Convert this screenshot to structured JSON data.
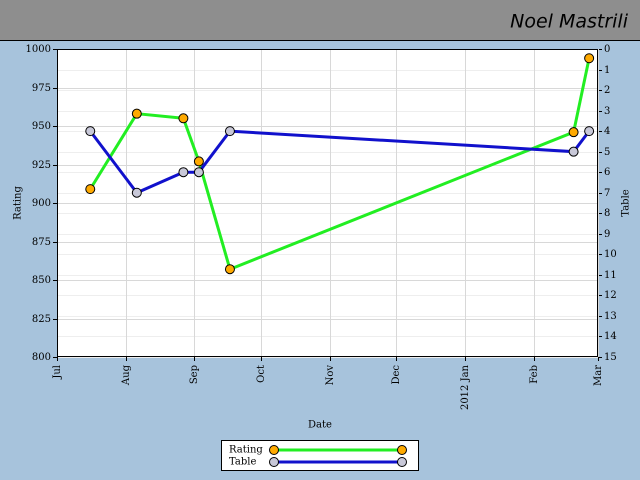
{
  "header": {
    "name": "Noel Mastrili"
  },
  "chart_data": {
    "type": "line",
    "x_label": "Date",
    "y_label": "Rating",
    "y2_label": "Table",
    "xlim": [
      "2011-07-01",
      "2012-03-01"
    ],
    "xticks": [
      {
        "value": "2011-07-01",
        "label": "Jul"
      },
      {
        "value": "2011-08-01",
        "label": "Aug"
      },
      {
        "value": "2011-09-01",
        "label": "Sep"
      },
      {
        "value": "2011-10-01",
        "label": "Oct"
      },
      {
        "value": "2011-11-01",
        "label": "Nov"
      },
      {
        "value": "2011-12-01",
        "label": "Dec"
      },
      {
        "value": "2012-01-01",
        "label": "2012 Jan"
      },
      {
        "value": "2012-02-01",
        "label": "Feb"
      },
      {
        "value": "2012-03-01",
        "label": "Mar"
      }
    ],
    "ylim": [
      800,
      1000
    ],
    "yticks": [
      800,
      825,
      850,
      875,
      900,
      925,
      950,
      975,
      1000
    ],
    "y2lim": [
      15,
      0
    ],
    "y2ticks": [
      0,
      1,
      2,
      3,
      4,
      5,
      6,
      7,
      8,
      9,
      10,
      11,
      12,
      13,
      14,
      15
    ],
    "grid": true,
    "legend": "bottom",
    "x": [
      "2011-07-16",
      "2011-08-06",
      "2011-08-27",
      "2011-09-03",
      "2011-09-17",
      "2012-02-19",
      "2012-02-26"
    ],
    "series": [
      {
        "name": "Rating",
        "color": "#22ee22",
        "marker_color": "#ffaa00",
        "values": [
          909,
          958,
          955,
          927,
          857,
          946,
          994
        ]
      },
      {
        "name": "Table",
        "color": "#1111cc",
        "marker_color": "#c8c8d8",
        "axis": "y2",
        "values": [
          4,
          7,
          6,
          6,
          4,
          5,
          4
        ]
      }
    ]
  }
}
